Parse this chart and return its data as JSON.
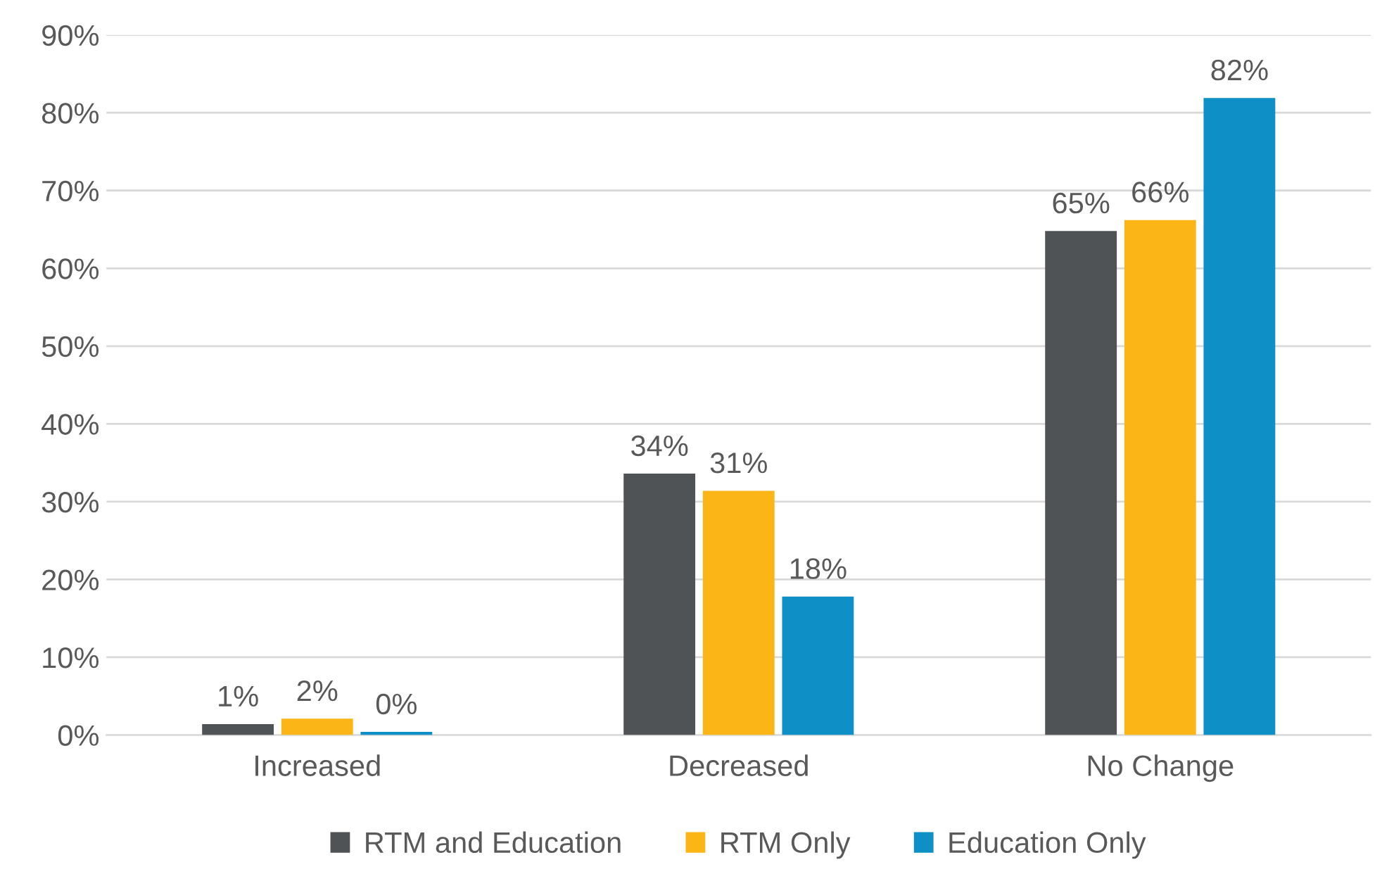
{
  "chart_data": {
    "type": "bar",
    "categories": [
      "Increased",
      "Decreased",
      "No Change"
    ],
    "series": [
      {
        "name": "RTM and Education",
        "color": "#505356",
        "values": [
          1.4,
          33.6,
          64.8
        ],
        "value_labels": [
          "1%",
          "34%",
          "65%"
        ]
      },
      {
        "name": "RTM Only",
        "color": "#fbb516",
        "values": [
          2.1,
          31.4,
          66.2
        ],
        "value_labels": [
          "2%",
          "31%",
          "66%"
        ]
      },
      {
        "name": "Education Only",
        "color": "#0e8fc6",
        "values": [
          0.4,
          17.8,
          81.9
        ],
        "value_labels": [
          "0%",
          "18%",
          "82%"
        ]
      }
    ],
    "ylim": [
      0,
      90
    ],
    "yticks": [
      {
        "value": 0,
        "label": "0%"
      },
      {
        "value": 10,
        "label": "10%"
      },
      {
        "value": 20,
        "label": "20%"
      },
      {
        "value": 30,
        "label": "30%"
      },
      {
        "value": 40,
        "label": "40%"
      },
      {
        "value": 50,
        "label": "50%"
      },
      {
        "value": 60,
        "label": "60%"
      },
      {
        "value": 70,
        "label": "70%"
      },
      {
        "value": 80,
        "label": "80%"
      },
      {
        "value": 90,
        "label": "90%"
      }
    ],
    "grid": "y",
    "legend": "bottom"
  }
}
